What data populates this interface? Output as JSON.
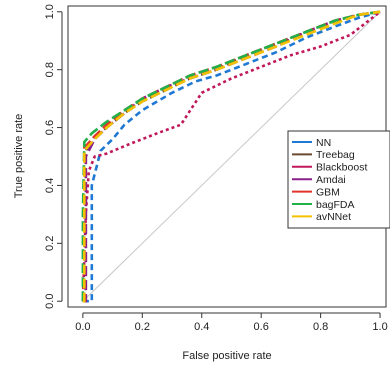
{
  "chart_data": {
    "type": "line",
    "title": "",
    "xlabel": "False positive rate",
    "ylabel": "True positive rate",
    "xlim": [
      -0.05,
      1.02
    ],
    "ylim": [
      -0.02,
      1.02
    ],
    "xticks": [
      0.0,
      0.2,
      0.4,
      0.6,
      0.8,
      1.0
    ],
    "xtick_labels": [
      "0.0",
      "0.2",
      "0.4",
      "0.6",
      "0.8",
      "1.0"
    ],
    "yticks": [
      0.0,
      0.2,
      0.4,
      0.6,
      0.8,
      1.0
    ],
    "ytick_labels": [
      "0.0",
      "0.2",
      "0.4",
      "0.6",
      "0.8",
      "1.0"
    ],
    "grid": false,
    "legend_position": "right",
    "diagonal_reference": true,
    "series": [
      {
        "name": "NN",
        "color": "#1f78d4",
        "dash": "6 4",
        "x": [
          0,
          0.03,
          0.03,
          0.06,
          0.1,
          0.14,
          0.2,
          0.3,
          0.38,
          0.45,
          0.55,
          0.65,
          0.75,
          0.85,
          0.93,
          1.0
        ],
        "y": [
          0,
          0,
          0.4,
          0.52,
          0.56,
          0.61,
          0.66,
          0.72,
          0.76,
          0.78,
          0.82,
          0.86,
          0.91,
          0.95,
          0.98,
          1.0
        ]
      },
      {
        "name": "Treebag",
        "color": "#6b4a33",
        "dash": "10 4",
        "x": [
          0,
          0.01,
          0.01,
          0.04,
          0.08,
          0.14,
          0.2,
          0.28,
          0.36,
          0.45,
          0.55,
          0.65,
          0.75,
          0.85,
          0.93,
          1.0
        ],
        "y": [
          0,
          0,
          0.52,
          0.57,
          0.6,
          0.65,
          0.69,
          0.73,
          0.77,
          0.8,
          0.85,
          0.89,
          0.93,
          0.97,
          0.99,
          1.0
        ]
      },
      {
        "name": "Blackboost",
        "color": "#c0185a",
        "dash": "3 3",
        "x": [
          0,
          0.01,
          0.02,
          0.04,
          0.08,
          0.15,
          0.25,
          0.33,
          0.4,
          0.5,
          0.6,
          0.7,
          0.8,
          0.9,
          1.0
        ],
        "y": [
          0,
          0.3,
          0.45,
          0.5,
          0.51,
          0.54,
          0.58,
          0.61,
          0.72,
          0.77,
          0.81,
          0.85,
          0.88,
          0.92,
          1.0
        ]
      },
      {
        "name": "Amdai",
        "color": "#8b1f8b",
        "dash": "10 4",
        "x": [
          0,
          0.01,
          0.01,
          0.04,
          0.08,
          0.14,
          0.2,
          0.28,
          0.36,
          0.45,
          0.55,
          0.65,
          0.75,
          0.85,
          0.93,
          1.0
        ],
        "y": [
          0,
          0,
          0.5,
          0.56,
          0.6,
          0.65,
          0.7,
          0.74,
          0.77,
          0.8,
          0.84,
          0.88,
          0.93,
          0.97,
          0.99,
          1.0
        ]
      },
      {
        "name": "GBM",
        "color": "#e0342b",
        "dash": "10 4",
        "x": [
          0,
          0.005,
          0.005,
          0.04,
          0.08,
          0.14,
          0.2,
          0.28,
          0.36,
          0.45,
          0.55,
          0.65,
          0.75,
          0.85,
          0.93,
          1.0
        ],
        "y": [
          0,
          0,
          0.53,
          0.57,
          0.61,
          0.66,
          0.7,
          0.74,
          0.78,
          0.81,
          0.85,
          0.89,
          0.93,
          0.97,
          0.99,
          1.0
        ]
      },
      {
        "name": "bagFDA",
        "color": "#22b04b",
        "dash": "10 4",
        "x": [
          0,
          0,
          0.005,
          0.03,
          0.08,
          0.14,
          0.2,
          0.28,
          0.36,
          0.45,
          0.55,
          0.65,
          0.75,
          0.85,
          0.93,
          1.0
        ],
        "y": [
          0,
          0.3,
          0.55,
          0.58,
          0.62,
          0.66,
          0.7,
          0.74,
          0.78,
          0.81,
          0.85,
          0.89,
          0.93,
          0.97,
          0.99,
          1.0
        ]
      },
      {
        "name": "avNNet",
        "color": "#f2c200",
        "dash": "10 4",
        "x": [
          0,
          0.005,
          0.005,
          0.04,
          0.08,
          0.14,
          0.2,
          0.28,
          0.36,
          0.45,
          0.55,
          0.65,
          0.75,
          0.85,
          0.93,
          1.0
        ],
        "y": [
          0,
          0,
          0.52,
          0.56,
          0.6,
          0.65,
          0.69,
          0.73,
          0.77,
          0.8,
          0.84,
          0.88,
          0.92,
          0.96,
          0.99,
          1.0
        ]
      }
    ]
  }
}
